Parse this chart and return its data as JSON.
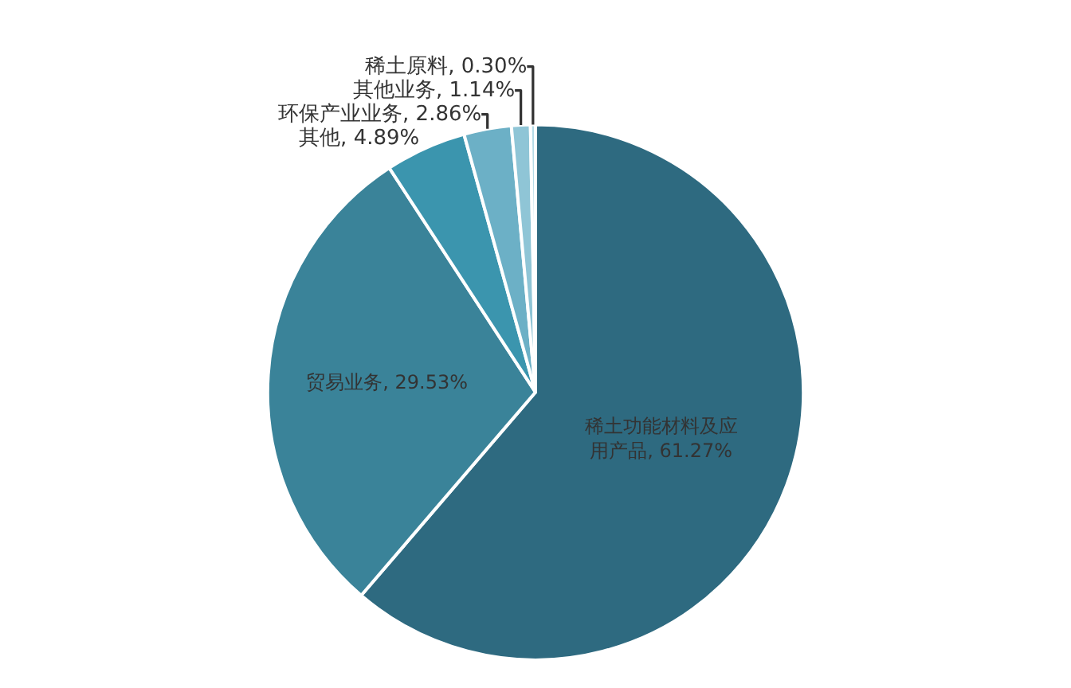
{
  "chart_data": {
    "type": "pie",
    "categories": [
      "稀土功能材料及应用产品",
      "贸易业务",
      "其他",
      "环保产业业务",
      "其他业务",
      "稀土原料"
    ],
    "values": [
      61.27,
      29.53,
      4.89,
      2.86,
      1.14,
      0.3
    ],
    "value_labels": [
      "61.27%",
      "29.53%",
      "4.89%",
      "2.86%",
      "1.14%",
      "0.30%"
    ],
    "colors": [
      "#2e6a80",
      "#3a8399",
      "#3b95ae",
      "#6cb0c6",
      "#8fc5d6",
      "#b5dbe7"
    ],
    "legend": false
  }
}
